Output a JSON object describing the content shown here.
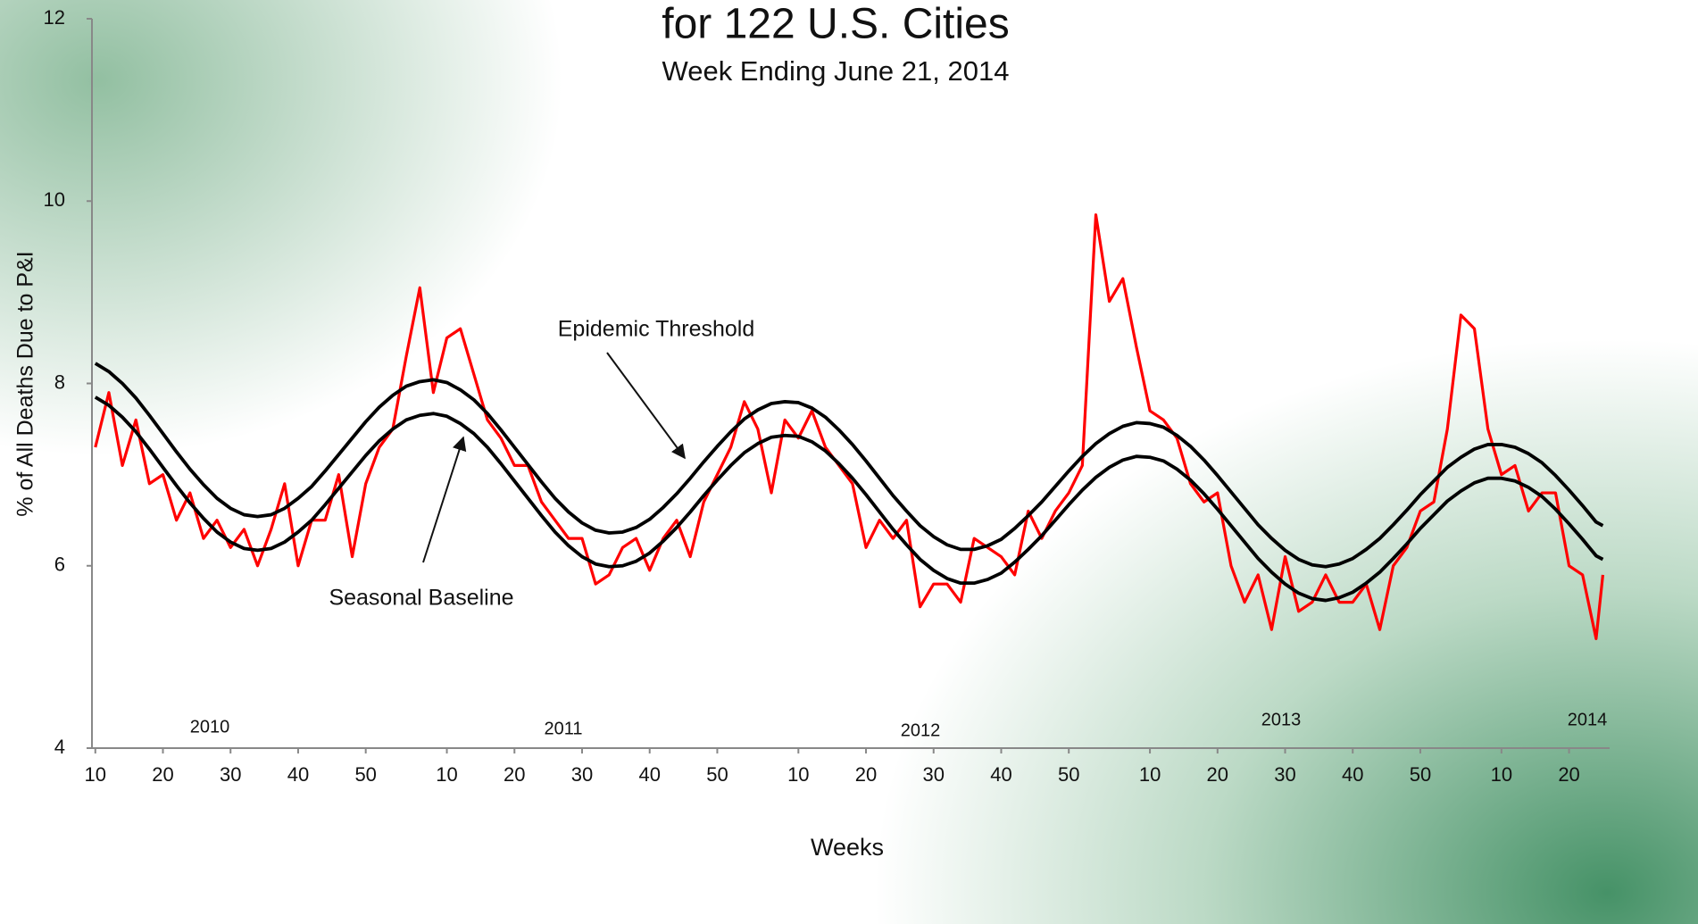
{
  "chart_data": {
    "type": "line",
    "title": "for 122 U.S. Cities",
    "subtitle": "Week Ending  June 21, 2014",
    "y_label": "% of All Deaths Due to P&I",
    "x_label": "Weeks",
    "annotations": [
      "Epidemic Threshold",
      "Seasonal Baseline"
    ],
    "year_labels": [
      "2010",
      "2011",
      "2012",
      "2013",
      "2014"
    ],
    "xlim": [
      -0.5,
      224
    ],
    "ylim": [
      4,
      12
    ],
    "yticks": [
      4,
      6,
      8,
      10,
      12
    ],
    "xticks": [
      {
        "value": 0,
        "label": "10"
      },
      {
        "value": 10,
        "label": "20"
      },
      {
        "value": 20,
        "label": "30"
      },
      {
        "value": 30,
        "label": "40"
      },
      {
        "value": 40,
        "label": "50"
      },
      {
        "value": 52,
        "label": "10"
      },
      {
        "value": 62,
        "label": "20"
      },
      {
        "value": 72,
        "label": "30"
      },
      {
        "value": 82,
        "label": "40"
      },
      {
        "value": 92,
        "label": "50"
      },
      {
        "value": 104,
        "label": "10"
      },
      {
        "value": 114,
        "label": "20"
      },
      {
        "value": 124,
        "label": "30"
      },
      {
        "value": 134,
        "label": "40"
      },
      {
        "value": 144,
        "label": "50"
      },
      {
        "value": 156,
        "label": "10"
      },
      {
        "value": 166,
        "label": "20"
      },
      {
        "value": 176,
        "label": "30"
      },
      {
        "value": 186,
        "label": "40"
      },
      {
        "value": 196,
        "label": "50"
      },
      {
        "value": 208,
        "label": "10"
      },
      {
        "value": 218,
        "label": "20"
      }
    ],
    "grid": false,
    "x": [
      0,
      2,
      4,
      6,
      8,
      10,
      12,
      14,
      16,
      18,
      20,
      22,
      24,
      26,
      28,
      30,
      32,
      34,
      36,
      38,
      40,
      42,
      44,
      46,
      48,
      50,
      52,
      54,
      56,
      58,
      60,
      62,
      64,
      66,
      68,
      70,
      72,
      74,
      76,
      78,
      80,
      82,
      84,
      86,
      88,
      90,
      92,
      94,
      96,
      98,
      100,
      102,
      104,
      106,
      108,
      110,
      112,
      114,
      116,
      118,
      120,
      122,
      124,
      126,
      128,
      130,
      132,
      134,
      136,
      138,
      140,
      142,
      144,
      146,
      148,
      150,
      152,
      154,
      156,
      158,
      160,
      162,
      164,
      166,
      168,
      170,
      172,
      174,
      176,
      178,
      180,
      182,
      184,
      186,
      188,
      190,
      192,
      194,
      196,
      198,
      200,
      202,
      204,
      206,
      208,
      210,
      212,
      214,
      216,
      218,
      220,
      222,
      223
    ],
    "series": [
      {
        "color": "#ff0000",
        "values": [
          7.3,
          7.9,
          7.1,
          7.6,
          6.9,
          7.0,
          6.5,
          6.8,
          6.3,
          6.5,
          6.2,
          6.4,
          6.0,
          6.4,
          6.9,
          6.0,
          6.5,
          6.5,
          7.0,
          6.1,
          6.9,
          7.3,
          7.5,
          8.3,
          9.05,
          7.9,
          8.5,
          8.6,
          8.1,
          7.6,
          7.4,
          7.1,
          7.1,
          6.7,
          6.5,
          6.3,
          6.3,
          5.8,
          5.9,
          6.2,
          6.3,
          5.95,
          6.3,
          6.5,
          6.1,
          6.7,
          7.0,
          7.3,
          7.8,
          7.5,
          6.8,
          7.6,
          7.4,
          7.7,
          7.3,
          7.1,
          6.9,
          6.2,
          6.5,
          6.3,
          6.5,
          5.55,
          5.8,
          5.8,
          5.6,
          6.3,
          6.2,
          6.1,
          5.9,
          6.6,
          6.3,
          6.6,
          6.8,
          7.1,
          9.85,
          8.9,
          9.15,
          8.4,
          7.7,
          7.6,
          7.4,
          6.9,
          6.7,
          6.8,
          6.0,
          5.6,
          5.9,
          5.3,
          6.1,
          5.5,
          5.6,
          5.9,
          5.6,
          5.6,
          5.8,
          5.3,
          6.0,
          6.2,
          6.6,
          6.7,
          7.5,
          8.75,
          8.6,
          7.5,
          7.0,
          7.1,
          6.6,
          6.8,
          6.8,
          6.0,
          5.9,
          5.2,
          5.9
        ]
      },
      {
        "name": "Epidemic Threshold",
        "color": "#000000",
        "values": [
          8.22,
          8.13,
          8.0,
          7.84,
          7.65,
          7.45,
          7.25,
          7.06,
          6.89,
          6.74,
          6.63,
          6.56,
          6.54,
          6.56,
          6.63,
          6.74,
          6.87,
          7.04,
          7.22,
          7.4,
          7.58,
          7.74,
          7.87,
          7.97,
          8.02,
          8.04,
          8.01,
          7.93,
          7.82,
          7.67,
          7.49,
          7.3,
          7.11,
          6.92,
          6.74,
          6.59,
          6.47,
          6.39,
          6.36,
          6.37,
          6.42,
          6.51,
          6.64,
          6.79,
          6.96,
          7.14,
          7.31,
          7.47,
          7.61,
          7.71,
          7.78,
          7.8,
          7.79,
          7.73,
          7.63,
          7.49,
          7.33,
          7.15,
          6.96,
          6.77,
          6.6,
          6.44,
          6.32,
          6.23,
          6.18,
          6.18,
          6.22,
          6.29,
          6.41,
          6.55,
          6.7,
          6.87,
          7.04,
          7.2,
          7.34,
          7.45,
          7.53,
          7.57,
          7.56,
          7.52,
          7.43,
          7.31,
          7.16,
          6.99,
          6.81,
          6.63,
          6.45,
          6.3,
          6.17,
          6.07,
          6.01,
          5.99,
          6.02,
          6.08,
          6.18,
          6.3,
          6.45,
          6.61,
          6.78,
          6.93,
          7.08,
          7.19,
          7.28,
          7.33,
          7.33,
          7.3,
          7.23,
          7.13,
          6.99,
          6.83,
          6.66,
          6.48,
          6.44
        ]
      },
      {
        "name": "Seasonal Baseline",
        "color": "#000000",
        "values": [
          7.85,
          7.76,
          7.63,
          7.47,
          7.28,
          7.08,
          6.88,
          6.69,
          6.52,
          6.37,
          6.26,
          6.19,
          6.17,
          6.19,
          6.26,
          6.37,
          6.5,
          6.67,
          6.85,
          7.03,
          7.21,
          7.37,
          7.5,
          7.6,
          7.65,
          7.67,
          7.64,
          7.56,
          7.45,
          7.3,
          7.12,
          6.93,
          6.74,
          6.55,
          6.37,
          6.22,
          6.1,
          6.02,
          5.99,
          6.0,
          6.05,
          6.14,
          6.27,
          6.42,
          6.59,
          6.77,
          6.94,
          7.1,
          7.24,
          7.34,
          7.41,
          7.43,
          7.42,
          7.36,
          7.26,
          7.12,
          6.96,
          6.78,
          6.59,
          6.4,
          6.23,
          6.07,
          5.95,
          5.86,
          5.81,
          5.81,
          5.85,
          5.92,
          6.04,
          6.18,
          6.33,
          6.5,
          6.67,
          6.83,
          6.97,
          7.08,
          7.16,
          7.2,
          7.19,
          7.15,
          7.06,
          6.94,
          6.79,
          6.62,
          6.44,
          6.26,
          6.08,
          5.93,
          5.8,
          5.7,
          5.64,
          5.62,
          5.65,
          5.71,
          5.81,
          5.93,
          6.08,
          6.24,
          6.41,
          6.56,
          6.71,
          6.82,
          6.91,
          6.96,
          6.96,
          6.93,
          6.86,
          6.76,
          6.62,
          6.46,
          6.29,
          6.11,
          6.07
        ]
      }
    ]
  }
}
